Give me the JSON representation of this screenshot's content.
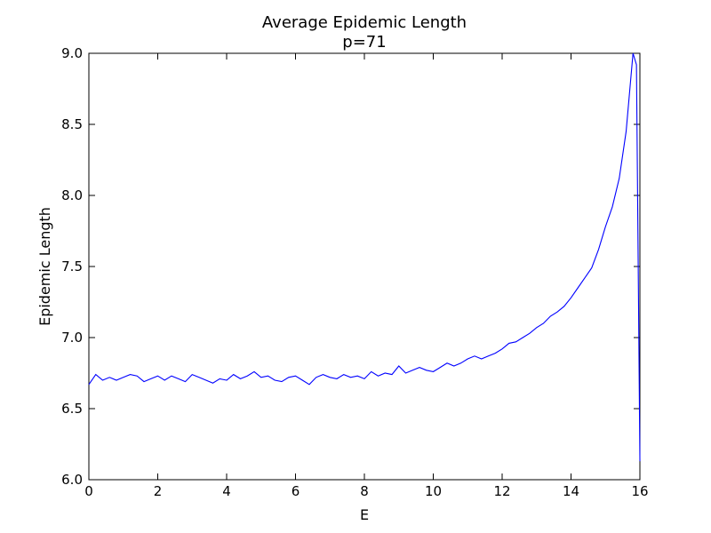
{
  "chart_data": {
    "type": "line",
    "title": "Average Epidemic Length",
    "subtitle": "p=71",
    "xlabel": "E",
    "ylabel": "Epidemic Length",
    "xlim": [
      0,
      16
    ],
    "ylim": [
      6.0,
      9.0
    ],
    "xticks": [
      0,
      2,
      4,
      6,
      8,
      10,
      12,
      14,
      16
    ],
    "xtick_labels": [
      "0",
      "2",
      "4",
      "6",
      "8",
      "10",
      "12",
      "14",
      "16"
    ],
    "yticks": [
      6.0,
      6.5,
      7.0,
      7.5,
      8.0,
      8.5,
      9.0
    ],
    "ytick_labels": [
      "6.0",
      "6.5",
      "7.0",
      "7.5",
      "8.0",
      "8.5",
      "9.0"
    ],
    "grid": false,
    "line_color": "#0000ff",
    "series": [
      {
        "x": [
          0,
          0.2,
          0.4,
          0.6,
          0.8,
          1.0,
          1.2,
          1.4,
          1.6,
          1.8,
          2.0,
          2.2,
          2.4,
          2.6,
          2.8,
          3.0,
          3.2,
          3.4,
          3.6,
          3.8,
          4.0,
          4.2,
          4.4,
          4.6,
          4.8,
          5.0,
          5.2,
          5.4,
          5.6,
          5.8,
          6.0,
          6.2,
          6.4,
          6.6,
          6.8,
          7.0,
          7.2,
          7.4,
          7.6,
          7.8,
          8.0,
          8.2,
          8.4,
          8.6,
          8.8,
          9.0,
          9.2,
          9.4,
          9.6,
          9.8,
          10.0,
          10.2,
          10.4,
          10.6,
          10.8,
          11.0,
          11.2,
          11.4,
          11.6,
          11.8,
          12.0,
          12.2,
          12.4,
          12.6,
          12.8,
          13.0,
          13.2,
          13.4,
          13.6,
          13.8,
          14.0,
          14.2,
          14.4,
          14.6,
          14.8,
          15.0,
          15.2,
          15.4,
          15.6,
          15.8,
          15.9,
          16.0
        ],
        "y": [
          6.67,
          6.74,
          6.7,
          6.72,
          6.7,
          6.72,
          6.74,
          6.73,
          6.69,
          6.71,
          6.73,
          6.7,
          6.73,
          6.71,
          6.69,
          6.74,
          6.72,
          6.7,
          6.68,
          6.71,
          6.7,
          6.74,
          6.71,
          6.73,
          6.76,
          6.72,
          6.73,
          6.7,
          6.69,
          6.72,
          6.73,
          6.7,
          6.67,
          6.72,
          6.74,
          6.72,
          6.71,
          6.74,
          6.72,
          6.73,
          6.71,
          6.76,
          6.73,
          6.75,
          6.74,
          6.8,
          6.75,
          6.77,
          6.79,
          6.77,
          6.76,
          6.79,
          6.82,
          6.8,
          6.82,
          6.85,
          6.87,
          6.85,
          6.87,
          6.89,
          6.92,
          6.96,
          6.97,
          7.0,
          7.03,
          7.07,
          7.1,
          7.15,
          7.18,
          7.22,
          7.28,
          7.35,
          7.42,
          7.49,
          7.62,
          7.78,
          7.92,
          8.12,
          8.45,
          9.0,
          8.92,
          6.13
        ]
      }
    ]
  }
}
